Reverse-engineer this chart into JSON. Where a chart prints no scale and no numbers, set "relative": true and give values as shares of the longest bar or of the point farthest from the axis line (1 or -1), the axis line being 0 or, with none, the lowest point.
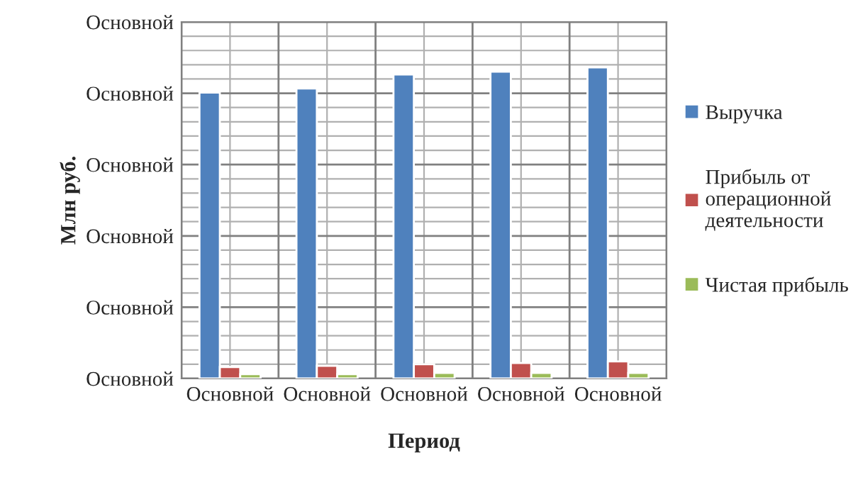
{
  "chart_data": {
    "type": "bar",
    "relative": true,
    "xlabel": "Период",
    "ylabel": "Млн руб.",
    "categories": [
      "Основной",
      "Основной",
      "Основной",
      "Основной",
      "Основной"
    ],
    "series": [
      {
        "name": "Выручка",
        "color": "#4f81bd",
        "values": [
          0.919,
          0.932,
          0.977,
          0.986,
          1.0
        ]
      },
      {
        "name": "Прибыль от\nоперационной\nдеятельности",
        "color": "#c0504d",
        "values": [
          0.037,
          0.041,
          0.046,
          0.05,
          0.055
        ]
      },
      {
        "name": "Чистая прибыль",
        "color": "#9bbb59",
        "values": [
          0.014,
          0.014,
          0.018,
          0.018,
          0.018
        ]
      }
    ],
    "annotations": [
      "Основной",
      "Основной",
      "Основной",
      "Основной",
      "Основной",
      "Основной"
    ],
    "grid": true,
    "legend": "right"
  }
}
